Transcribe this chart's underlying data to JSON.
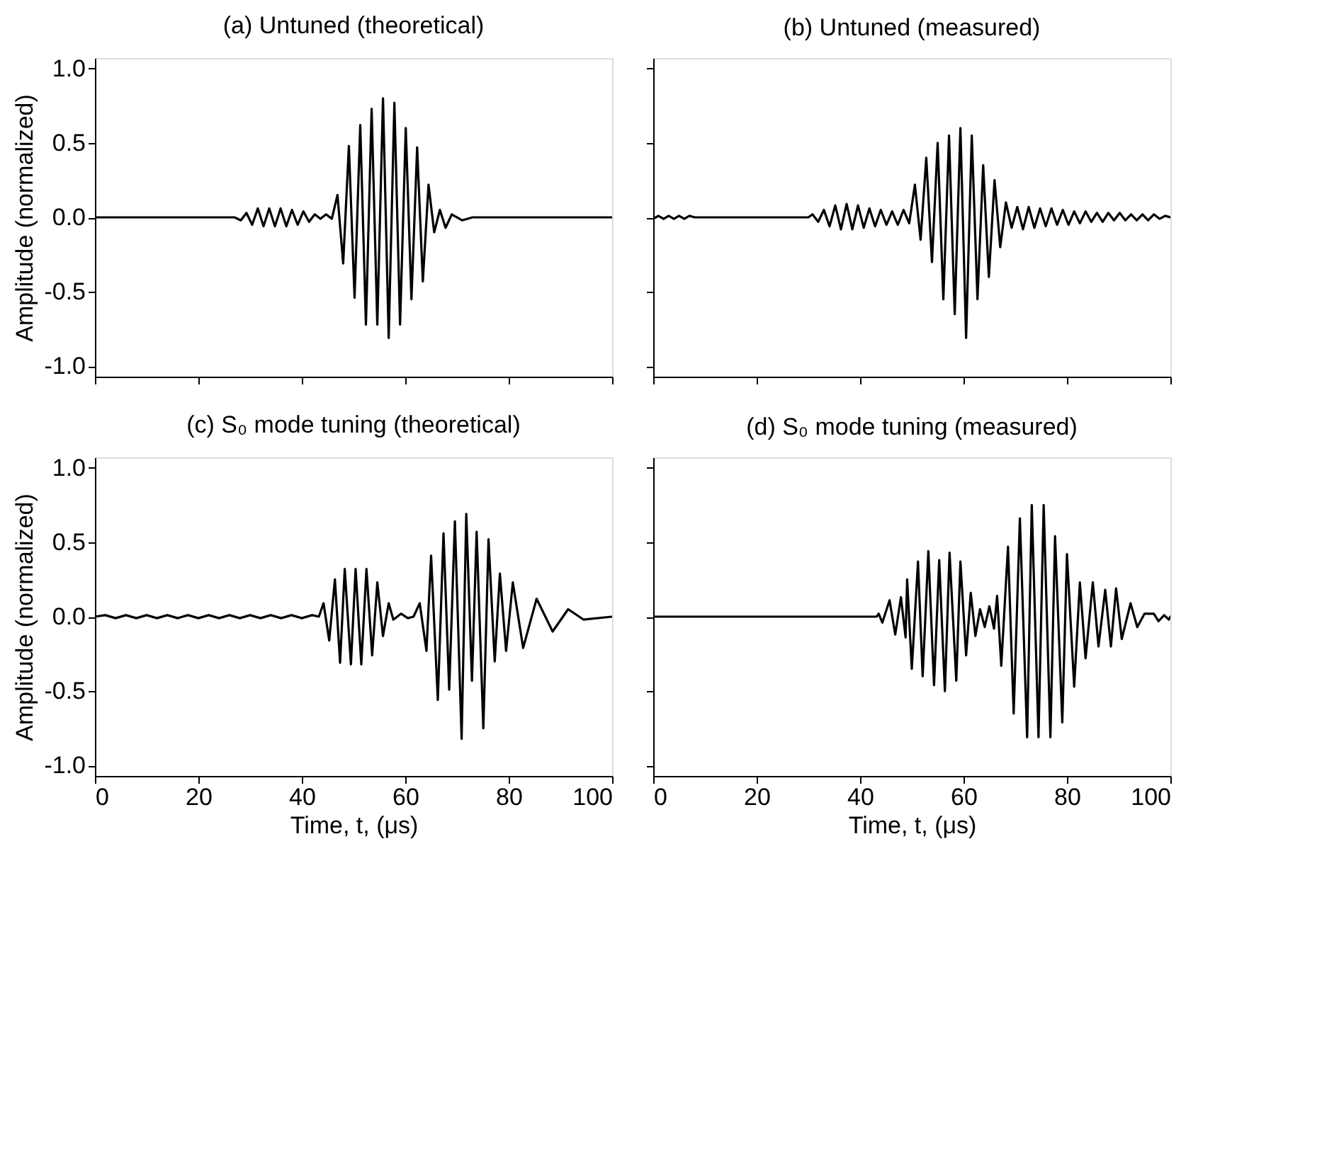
{
  "chart_data": [
    {
      "type": "line",
      "title": "(a) Untuned (theoretical)",
      "ylabel": "Amplitude (normalized)",
      "xlim": [
        0,
        100
      ],
      "ylim": [
        -1.07,
        1.07
      ],
      "xticks": [
        0,
        20,
        40,
        60,
        80,
        100
      ],
      "yticks": [
        {
          "value": -1,
          "label": "-1.0"
        },
        {
          "value": -0.5,
          "label": "-0.5"
        },
        {
          "value": 0,
          "label": "0.0"
        },
        {
          "value": 0.5,
          "label": "0.5"
        },
        {
          "value": 1,
          "label": "1.0"
        }
      ],
      "tick_labels": "y",
      "series": [
        {
          "color": "#000000",
          "x": [
            0,
            27,
            28.2,
            29.3,
            30.4,
            31.5,
            32.6,
            33.7,
            34.8,
            35.9,
            37,
            38.1,
            39.2,
            40.3,
            41.4,
            42.5,
            43.6,
            44.7,
            45.8,
            46.9,
            48,
            49.1,
            50.2,
            51.3,
            52.4,
            53.5,
            54.6,
            55.7,
            56.8,
            57.9,
            59,
            60.1,
            61.2,
            62.3,
            63.4,
            64.5,
            65.6,
            66.7,
            67.8,
            69,
            71,
            73,
            100
          ],
          "values": [
            0,
            0,
            -0.02,
            0.03,
            -0.05,
            0.06,
            -0.06,
            0.06,
            -0.06,
            0.06,
            -0.06,
            0.05,
            -0.05,
            0.04,
            -0.03,
            0.02,
            -0.01,
            0.02,
            -0.01,
            0.15,
            -0.31,
            0.48,
            -0.54,
            0.62,
            -0.72,
            0.73,
            -0.72,
            0.8,
            -0.81,
            0.77,
            -0.72,
            0.6,
            -0.55,
            0.47,
            -0.43,
            0.22,
            -0.1,
            0.05,
            -0.07,
            0.02,
            -0.02,
            0,
            0
          ]
        }
      ]
    },
    {
      "type": "line",
      "title": "(b) Untuned (measured)",
      "xlim": [
        0,
        100
      ],
      "ylim": [
        -1.07,
        1.07
      ],
      "xticks": [
        0,
        20,
        40,
        60,
        80,
        100
      ],
      "yticks": [
        -1,
        -0.5,
        0,
        0.5,
        1
      ],
      "tick_labels": false,
      "series": [
        {
          "color": "#000000",
          "x": [
            0,
            1,
            2,
            3,
            4,
            5,
            6,
            7,
            8,
            30,
            30.8,
            31.9,
            33,
            34.1,
            35.2,
            36.3,
            37.4,
            38.5,
            39.6,
            40.7,
            41.8,
            42.9,
            44,
            45.1,
            46.2,
            47.3,
            48.4,
            49.5,
            50.6,
            51.7,
            52.8,
            53.9,
            55,
            56.1,
            57.2,
            58.3,
            59.4,
            60.5,
            61.6,
            62.7,
            63.8,
            64.9,
            66,
            67.1,
            68.2,
            69.3,
            70.4,
            71.5,
            72.6,
            73.7,
            74.8,
            75.9,
            77,
            78.1,
            79.2,
            80.3,
            81.4,
            82.5,
            83.6,
            84.7,
            85.8,
            86.9,
            88,
            89.1,
            90.2,
            91.3,
            92.4,
            93.5,
            94.6,
            95.7,
            96.8,
            97.9,
            99,
            100
          ],
          "values": [
            -0.01,
            0.01,
            -0.01,
            0.01,
            -0.01,
            0.01,
            -0.01,
            0.01,
            0,
            0,
            0.02,
            -0.03,
            0.05,
            -0.06,
            0.08,
            -0.08,
            0.09,
            -0.08,
            0.08,
            -0.07,
            0.06,
            -0.06,
            0.05,
            -0.05,
            0.04,
            -0.05,
            0.05,
            -0.04,
            0.22,
            -0.15,
            0.4,
            -0.3,
            0.5,
            -0.55,
            0.55,
            -0.65,
            0.6,
            -0.81,
            0.55,
            -0.55,
            0.35,
            -0.4,
            0.25,
            -0.2,
            0.1,
            -0.07,
            0.07,
            -0.08,
            0.07,
            -0.07,
            0.06,
            -0.06,
            0.06,
            -0.05,
            0.05,
            -0.05,
            0.04,
            -0.04,
            0.04,
            -0.03,
            0.03,
            -0.03,
            0.03,
            -0.02,
            0.03,
            -0.02,
            0.02,
            -0.02,
            0.02,
            -0.02,
            0.02,
            -0.01,
            0.01,
            0
          ]
        }
      ]
    },
    {
      "type": "line",
      "title": "(c) S₀ mode tuning (theoretical)",
      "xlabel": "Time, t, (μs)",
      "ylabel": "Amplitude (normalized)",
      "xlim": [
        0,
        100
      ],
      "ylim": [
        -1.07,
        1.07
      ],
      "xticks": [
        0,
        20,
        40,
        60,
        80,
        100
      ],
      "yticks": [
        {
          "value": -1,
          "label": "-1.0"
        },
        {
          "value": -0.5,
          "label": "-0.5"
        },
        {
          "value": 0,
          "label": "0.0"
        },
        {
          "value": 0.5,
          "label": "0.5"
        },
        {
          "value": 1,
          "label": "1.0"
        }
      ],
      "series": [
        {
          "color": "#000000",
          "x": [
            0,
            2,
            4,
            6,
            8,
            10,
            12,
            14,
            16,
            18,
            20,
            22,
            24,
            26,
            28,
            30,
            32,
            34,
            36,
            38,
            40,
            42,
            43.3,
            44.2,
            45.3,
            46.4,
            47.4,
            48.3,
            49.5,
            50.4,
            51.5,
            52.5,
            53.6,
            54.6,
            55.7,
            56.8,
            57.7,
            59.2,
            60.5,
            61.6,
            62.8,
            64.1,
            65,
            66.3,
            67.4,
            68.5,
            69.6,
            70.9,
            71.8,
            72.9,
            73.8,
            75.1,
            76.1,
            77.3,
            78.3,
            79.5,
            80.8,
            82.8,
            85.4,
            88.5,
            91.5,
            94.5,
            100
          ],
          "values": [
            0,
            0.01,
            -0.01,
            0.01,
            -0.01,
            0.01,
            -0.01,
            0.01,
            -0.01,
            0.01,
            -0.01,
            0.01,
            -0.01,
            0.01,
            -0.01,
            0.01,
            -0.01,
            0.01,
            -0.01,
            0.01,
            -0.01,
            0.01,
            0,
            0.09,
            -0.16,
            0.25,
            -0.31,
            0.32,
            -0.32,
            0.32,
            -0.32,
            0.32,
            -0.26,
            0.23,
            -0.13,
            0.09,
            -0.02,
            0.02,
            -0.01,
            0,
            0.09,
            -0.23,
            0.41,
            -0.56,
            0.56,
            -0.49,
            0.64,
            -0.82,
            0.69,
            -0.43,
            0.57,
            -0.75,
            0.52,
            -0.3,
            0.29,
            -0.23,
            0.23,
            -0.21,
            0.12,
            -0.1,
            0.05,
            -0.02,
            0
          ]
        }
      ]
    },
    {
      "type": "line",
      "title": "(d) S₀ mode tuning (measured)",
      "xlabel": "Time, t, (μs)",
      "xlim": [
        0,
        100
      ],
      "ylim": [
        -1.07,
        1.07
      ],
      "xticks": [
        0,
        20,
        40,
        60,
        80,
        100
      ],
      "yticks": [
        -1,
        -0.5,
        0,
        0.5,
        1
      ],
      "tick_labels": "x",
      "series": [
        {
          "color": "#000000",
          "x": [
            0,
            43.2,
            43.6,
            44.3,
            45.7,
            46.8,
            47.9,
            48.8,
            49.1,
            50,
            51.2,
            52.1,
            53.2,
            54.3,
            55.3,
            56.4,
            57.3,
            58.6,
            59.4,
            60.5,
            61.4,
            62.3,
            63.2,
            64.1,
            65,
            65.9,
            66.5,
            67.3,
            68.6,
            69.7,
            70.9,
            72.3,
            73.2,
            74.5,
            75.5,
            76.8,
            77.7,
            79.1,
            80,
            81.4,
            82.5,
            83.6,
            85,
            86.1,
            87.4,
            88.5,
            89.5,
            90.6,
            92.3,
            93.6,
            95,
            96.8,
            97.7,
            98.8,
            99.7,
            100
          ],
          "values": [
            0,
            0,
            0.02,
            -0.04,
            0.11,
            -0.12,
            0.13,
            -0.14,
            0.25,
            -0.35,
            0.37,
            -0.4,
            0.44,
            -0.46,
            0.38,
            -0.5,
            0.43,
            -0.43,
            0.37,
            -0.26,
            0.16,
            -0.13,
            0.05,
            -0.07,
            0.07,
            -0.08,
            0.14,
            -0.33,
            0.47,
            -0.65,
            0.66,
            -0.81,
            0.75,
            -0.81,
            0.75,
            -0.81,
            0.54,
            -0.71,
            0.42,
            -0.47,
            0.23,
            -0.28,
            0.23,
            -0.2,
            0.18,
            -0.2,
            0.19,
            -0.15,
            0.09,
            -0.07,
            0.02,
            0.02,
            -0.03,
            0.01,
            -0.02,
            0
          ]
        }
      ]
    }
  ]
}
